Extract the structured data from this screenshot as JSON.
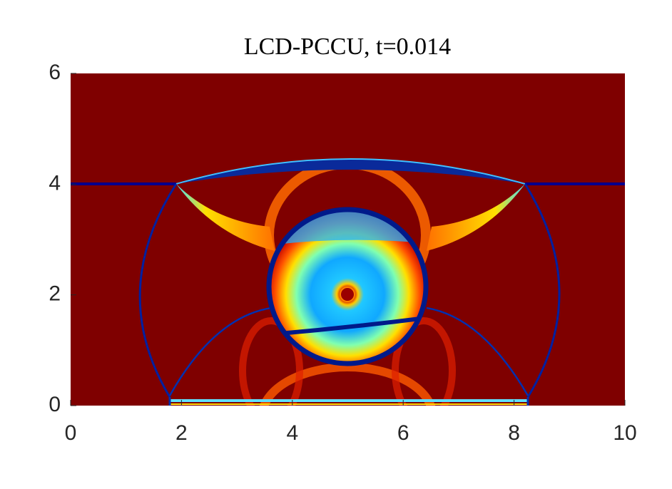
{
  "chart_data": {
    "type": "image",
    "title": "LCD-PCCU, t=0.014",
    "xlim": [
      0,
      10
    ],
    "ylim": [
      0,
      6
    ],
    "xticks": [
      0,
      2,
      4,
      6,
      8,
      10
    ],
    "yticks": [
      0,
      2,
      4,
      6
    ]
  }
}
